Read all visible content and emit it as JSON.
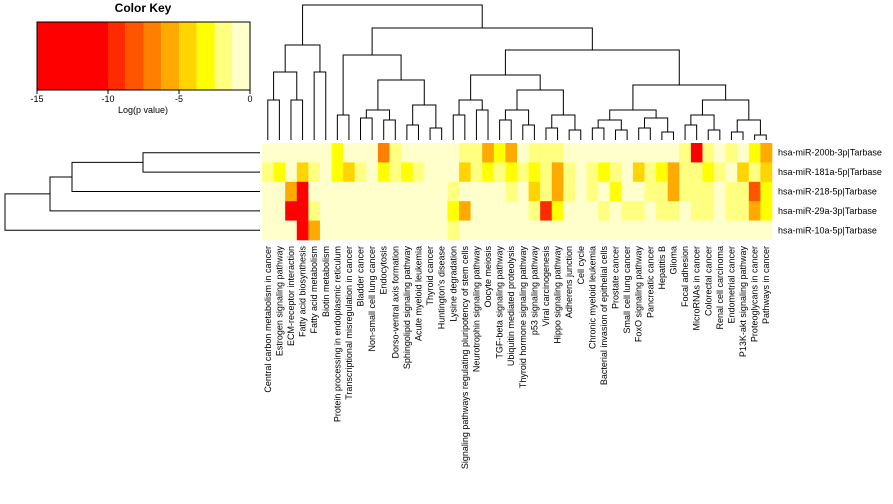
{
  "chart_data": {
    "type": "heatmap",
    "key_title": "Color Key",
    "key_label": "Log(p value)",
    "key_ticks": [
      -15,
      -10,
      -5,
      0
    ],
    "key_lim": [
      -15,
      0
    ],
    "color_scale": {
      "breaks": [
        -15,
        -10,
        -8.75,
        -7.5,
        -6.25,
        -5,
        -3.75,
        -2.5,
        -1.25,
        0
      ],
      "colors": [
        "#ff0000",
        "#ff2a00",
        "#ff5500",
        "#ff8000",
        "#ffaa00",
        "#ffd400",
        "#ffff00",
        "#ffff80",
        "#ffffcc"
      ]
    },
    "categories": [
      "Central carbon metabolism in cancer",
      "Estrogen signaling pathway",
      "ECM-receptor interaction",
      "Fatty acid biosynthesis",
      "Fatty acid metabolism",
      "Biotin metabolism",
      "Protein processing in endoplasmic reticulum",
      "Transcriptional misregulation in cancer",
      "Bladder cancer",
      "Non-small cell lung cancer",
      "Endocytosis",
      "Dorso-ventral axis formation",
      "Sphingolipid signaling pathway",
      "Acute myeloid leukemia",
      "Thyroid cancer",
      "Huntington's disease",
      "Lysine degradation",
      "Signaling pathways regulating pluripotency of stem cells",
      "Neurotrophin signaling pathway",
      "Oocyte meiosis",
      "TGF-beta signaling pathway",
      "Ubiquitin mediated proteolysis",
      "Thyroid hormone signaling pathway",
      "p53 signaling pathway",
      "Viral carcinogenesis",
      "Hippo signaling pathway",
      "Adherens junction",
      "Cell cycle",
      "Chronic myeloid leukemia",
      "Bacterial invasion of epithelial cells",
      "Prostate cancer",
      "Small cell lung cancer",
      "FoxO signaling pathway",
      "Pancreatic cancer",
      "Hepatitis B",
      "Glioma",
      "Focal adhesion",
      "MicroRNAs in cancer",
      "Colorectal cancer",
      "Renal cell carcinoma",
      "Endometrial cancer",
      "P13K-akt signaling pathway",
      "Proteoglycans in cancer",
      "Pathways in cancer"
    ],
    "rows": [
      "hsa-miR-200b-3p|Tarbase",
      "hsa-miR-181a-5p|Tarbase",
      "hsa-miR-218-5p|Tarbase",
      "hsa-miR-29a-3p|Tarbase",
      "hsa-miR-10a-5p|Tarbase"
    ],
    "values": [
      [
        -0.5,
        -0.5,
        -0.5,
        -0.5,
        -0.5,
        -0.5,
        -3,
        -0.5,
        -0.5,
        -0.5,
        -7,
        -2,
        -0.5,
        -0.5,
        -0.5,
        -0.5,
        -0.5,
        -2,
        -1.5,
        -6,
        -3,
        -6,
        -1,
        -2,
        -2,
        -2,
        -1,
        -1,
        -0.5,
        -1,
        -0.5,
        -0.5,
        -1,
        -1,
        -1,
        -1,
        -2,
        -10,
        -2,
        -0.5,
        -2,
        -1,
        -3,
        -5
      ],
      [
        -2,
        -3,
        -1,
        -4,
        -2,
        -1,
        -3,
        -4,
        -2,
        -1,
        -3,
        -2,
        -3,
        -2,
        -1,
        -0.5,
        -1,
        -4,
        -2,
        -3,
        -2,
        -3,
        -2,
        -3,
        -2,
        -5,
        -2,
        -1,
        -2,
        -3,
        -2,
        -1,
        -4,
        -2,
        -3,
        -5,
        -2,
        -2,
        -3,
        -2,
        -1,
        -4,
        -2,
        -4
      ],
      [
        -0.5,
        -0.5,
        -5,
        -12,
        -1,
        -0.5,
        -0.5,
        -0.5,
        -0.5,
        -0.5,
        -0.5,
        -0.5,
        -0.5,
        -0.5,
        -0.5,
        -0.5,
        -2,
        -1,
        -1,
        -1,
        -1,
        -2,
        -1,
        -4,
        -2,
        -5,
        -2,
        -0.5,
        -2,
        -1,
        -3,
        -1,
        -1,
        -2,
        -2,
        -5,
        -2,
        -2,
        -2,
        -1,
        -2,
        -2,
        -8,
        -3
      ],
      [
        -0.5,
        -0.5,
        -11,
        -12,
        -2,
        -0.5,
        -0.5,
        -0.5,
        -0.5,
        -0.5,
        -0.5,
        -0.5,
        -0.5,
        -0.5,
        -0.5,
        -0.5,
        -3,
        -5,
        -0.5,
        -0.5,
        -0.5,
        -0.5,
        -1,
        -2,
        -9,
        -3,
        -1,
        -1,
        -1,
        -2,
        -1,
        -2,
        -2,
        -1,
        -2,
        -2,
        -1,
        -2,
        -2,
        -1,
        -2,
        -2,
        -6,
        -3
      ],
      [
        -0.5,
        -0.5,
        -0.5,
        -12,
        -6,
        -0.5,
        -0.5,
        -0.5,
        -0.5,
        -0.5,
        -0.5,
        -0.5,
        -0.5,
        -0.5,
        -0.5,
        -0.5,
        -2,
        -0.5,
        -0.5,
        -0.5,
        -0.5,
        -0.5,
        -0.5,
        -0.5,
        -0.5,
        -0.5,
        -0.5,
        -0.5,
        -0.5,
        -0.5,
        -0.5,
        -0.5,
        -0.5,
        -0.5,
        -0.5,
        -0.5,
        -0.5,
        -0.5,
        -0.5,
        -0.5,
        -0.5,
        -0.5,
        -0.5,
        -0.5
      ]
    ]
  }
}
